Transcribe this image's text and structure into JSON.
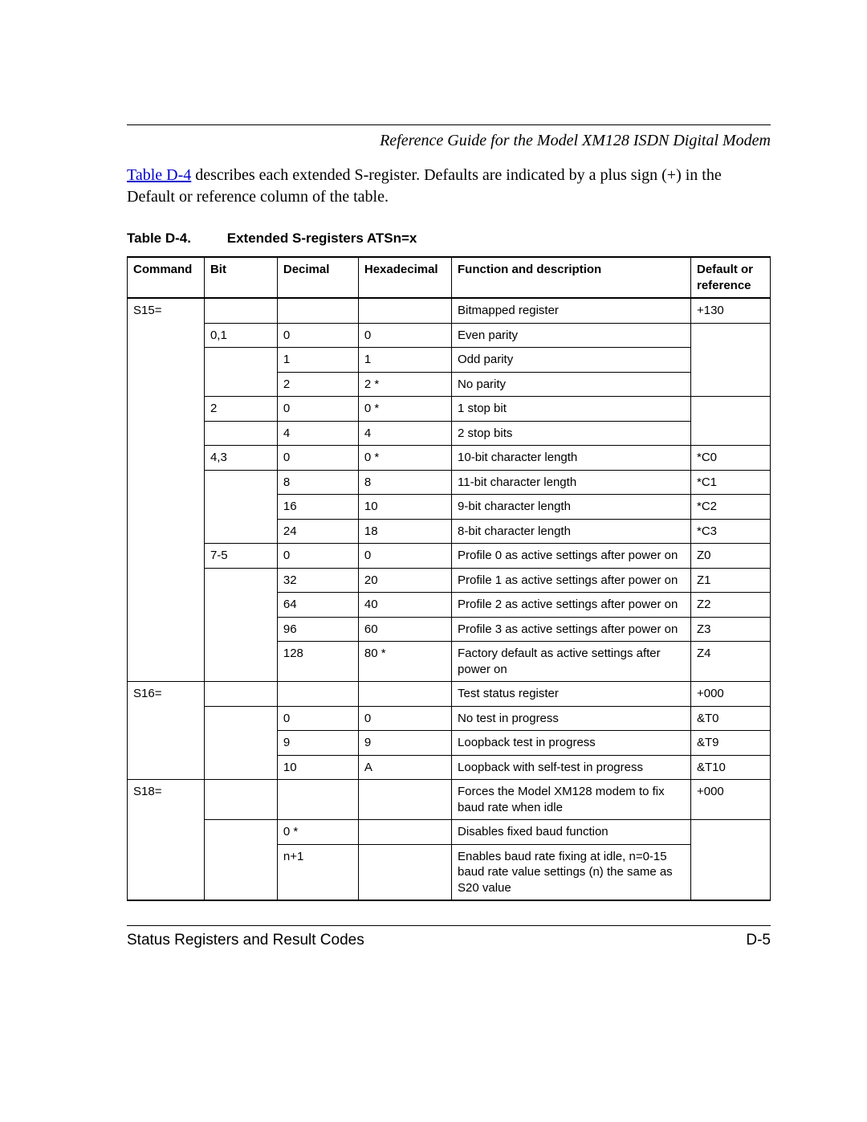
{
  "header": {
    "title": "Reference Guide for the Model XM128 ISDN Digital Modem"
  },
  "intro": {
    "link_text": "Table D-4",
    "rest": " describes each extended S-register. Defaults are indicated by a plus sign (+) in the Default or reference column of the table."
  },
  "caption": {
    "number": "Table D-4.",
    "title": "Extended S-registers ATSn=x"
  },
  "columns": [
    "Command",
    "Bit",
    "Decimal",
    "Hexadecimal",
    "Function and description",
    "Default or reference"
  ],
  "rows": [
    {
      "cmd": "S15=",
      "bit": "",
      "dec": "",
      "hex": "",
      "func": "Bitmapped register",
      "ref": "+130",
      "cmd_merge": "below"
    },
    {
      "cmd": "",
      "bit": "0,1",
      "dec": "0",
      "hex": "0",
      "func": "Even parity",
      "ref": "",
      "cmd_merge": "both",
      "ref_merge": "below"
    },
    {
      "cmd": "",
      "bit": "",
      "dec": "1",
      "hex": "1",
      "func": "Odd parity",
      "ref": "",
      "cmd_merge": "both",
      "bit_merge": "below",
      "ref_merge": "both"
    },
    {
      "cmd": "",
      "bit": "",
      "dec": "2",
      "hex": "2  *",
      "func": "No parity",
      "ref": "",
      "cmd_merge": "both",
      "bit_merge": "above",
      "ref_merge": "above"
    },
    {
      "cmd": "",
      "bit": "2",
      "dec": "0",
      "hex": "0  *",
      "func": "1 stop bit",
      "ref": "",
      "cmd_merge": "both",
      "ref_merge": "below"
    },
    {
      "cmd": "",
      "bit": "",
      "dec": "4",
      "hex": "4",
      "func": "2 stop bits",
      "ref": "",
      "cmd_merge": "both",
      "bit_merge": "above",
      "ref_merge": "above"
    },
    {
      "cmd": "",
      "bit": "4,3",
      "dec": "0",
      "hex": "0  *",
      "func": "10-bit character length",
      "ref": "*C0",
      "cmd_merge": "both"
    },
    {
      "cmd": "",
      "bit": "",
      "dec": "8",
      "hex": "8",
      "func": "11-bit character length",
      "ref": "*C1",
      "cmd_merge": "both",
      "bit_merge": "below"
    },
    {
      "cmd": "",
      "bit": "",
      "dec": "16",
      "hex": "10",
      "func": "9-bit character length",
      "ref": "*C2",
      "cmd_merge": "both",
      "bit_merge": "both"
    },
    {
      "cmd": "",
      "bit": "",
      "dec": "24",
      "hex": "18",
      "func": "8-bit character length",
      "ref": "*C3",
      "cmd_merge": "both",
      "bit_merge": "above"
    },
    {
      "cmd": "",
      "bit": "7-5",
      "dec": "0",
      "hex": "0",
      "func": "Profile 0 as active settings after power on",
      "ref": "Z0",
      "cmd_merge": "both"
    },
    {
      "cmd": "",
      "bit": "",
      "dec": "32",
      "hex": "20",
      "func": "Profile 1 as active settings after power on",
      "ref": "Z1",
      "cmd_merge": "both",
      "bit_merge": "below"
    },
    {
      "cmd": "",
      "bit": "",
      "dec": "64",
      "hex": "40",
      "func": "Profile 2 as active settings after power on",
      "ref": "Z2",
      "cmd_merge": "both",
      "bit_merge": "both"
    },
    {
      "cmd": "",
      "bit": "",
      "dec": "96",
      "hex": "60",
      "func": "Profile 3 as active settings after power on",
      "ref": "Z3",
      "cmd_merge": "both",
      "bit_merge": "both"
    },
    {
      "cmd": "",
      "bit": "",
      "dec": "128",
      "hex": "80 *",
      "func": "Factory default as active settings after power on",
      "ref": "Z4",
      "cmd_merge": "above",
      "bit_merge": "above"
    },
    {
      "cmd": "S16=",
      "bit": "",
      "dec": "",
      "hex": "",
      "func": "Test status register",
      "ref": "+000",
      "cmd_merge": "below"
    },
    {
      "cmd": "",
      "bit": "",
      "dec": "0",
      "hex": "0",
      "func": "No test in progress",
      "ref": "&T0",
      "cmd_merge": "both",
      "bit_merge": "below"
    },
    {
      "cmd": "",
      "bit": "",
      "dec": "9",
      "hex": "9",
      "func": "Loopback test in progress",
      "ref": "&T9",
      "cmd_merge": "both",
      "bit_merge": "both"
    },
    {
      "cmd": "",
      "bit": "",
      "dec": "10",
      "hex": "A",
      "func": "Loopback with self-test in progress",
      "ref": "&T10",
      "cmd_merge": "above",
      "bit_merge": "above"
    },
    {
      "cmd": "S18=",
      "bit": "",
      "dec": "",
      "hex": "",
      "func": "Forces the Model XM128 modem to fix baud rate when idle",
      "ref": "+000",
      "cmd_merge": "below"
    },
    {
      "cmd": "",
      "bit": "",
      "dec": "0  *",
      "hex": "",
      "func": "Disables fixed baud function",
      "ref": "",
      "cmd_merge": "both",
      "bit_merge": "below",
      "ref_merge": "below"
    },
    {
      "cmd": "",
      "bit": "",
      "dec": "n+1",
      "hex": "",
      "func": "Enables baud rate fixing at idle, n=0-15 baud rate value settings (n) the same as S20 value",
      "ref": "",
      "cmd_merge": "above",
      "bit_merge": "above",
      "hex_merge": "above",
      "ref_merge": "above"
    }
  ],
  "footer": {
    "left": "Status Registers and Result Codes",
    "right": "D-5"
  }
}
